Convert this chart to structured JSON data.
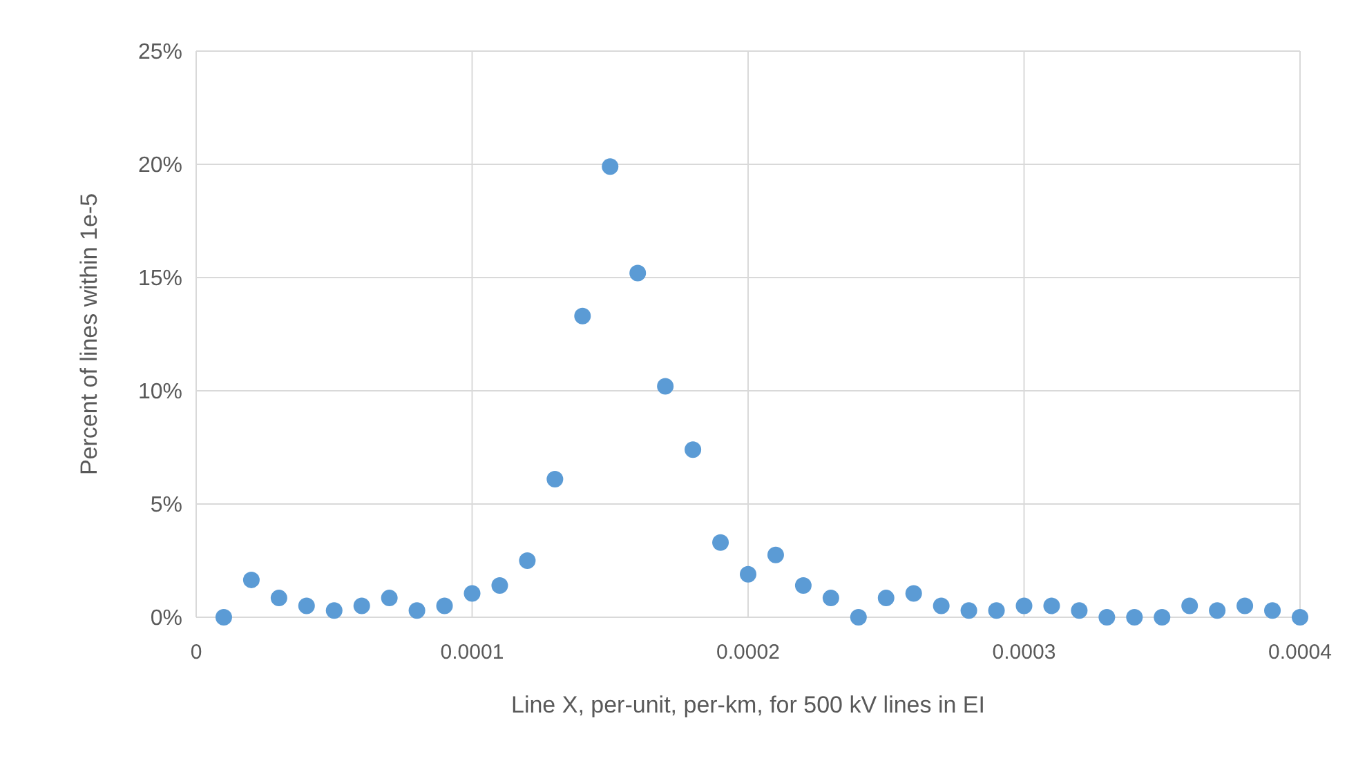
{
  "chart_data": {
    "type": "scatter",
    "xlabel": "Line X, per-unit, per-km, for 500 kV lines in EI",
    "ylabel": "Percent of lines within 1e-5",
    "x": [
      1e-05,
      2e-05,
      3e-05,
      4e-05,
      5e-05,
      6e-05,
      7e-05,
      8e-05,
      9e-05,
      0.0001,
      0.00011,
      0.00012,
      0.00013,
      0.00014,
      0.00015,
      0.00016,
      0.00017,
      0.00018,
      0.00019,
      0.0002,
      0.00021,
      0.00022,
      0.00023,
      0.00024,
      0.00025,
      0.00026,
      0.00027,
      0.00028,
      0.00029,
      0.0003,
      0.00031,
      0.00032,
      0.00033,
      0.00034,
      0.00035,
      0.00036,
      0.00037,
      0.00038,
      0.00039,
      0.0004
    ],
    "series": [
      {
        "color": "#5b9bd5",
        "values": [
          0,
          1.65,
          0.85,
          0.5,
          0.3,
          0.5,
          0.85,
          0.3,
          0.5,
          1.05,
          1.4,
          2.5,
          6.1,
          13.3,
          19.9,
          15.2,
          10.2,
          7.4,
          3.3,
          1.9,
          2.75,
          1.4,
          0.85,
          0,
          0.85,
          1.05,
          0.5,
          0.3,
          0.3,
          0.5,
          0.5,
          0.3,
          0,
          0,
          0,
          0.5,
          0.3,
          0.5,
          0.3,
          0
        ]
      }
    ],
    "xlim": [
      0,
      0.0004
    ],
    "xticks": [
      0,
      0.0001,
      0.0002,
      0.0003,
      0.0004
    ],
    "ylim": [
      0,
      25
    ],
    "yticks": [
      {
        "value": 0,
        "label": "0%"
      },
      {
        "value": 5,
        "label": "5%"
      },
      {
        "value": 10,
        "label": "10%"
      },
      {
        "value": 15,
        "label": "15%"
      },
      {
        "value": 20,
        "label": "20%"
      },
      {
        "value": 25,
        "label": "25%"
      }
    ],
    "grid": true,
    "marker": "circle"
  }
}
